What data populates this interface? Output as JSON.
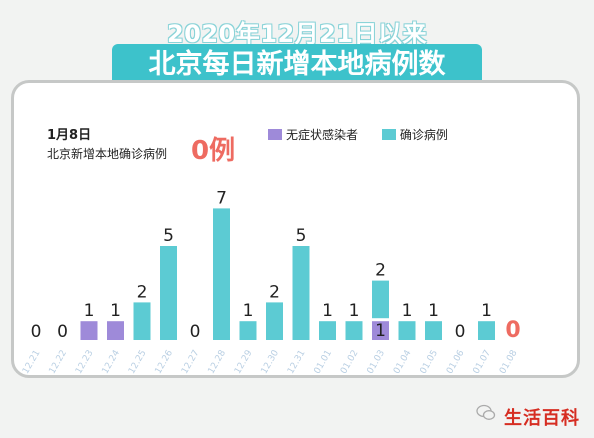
{
  "header": {
    "line1": "2020年12月21日以来",
    "line2": "北京每日新增本地病例数"
  },
  "info": {
    "date": "1月8日",
    "label": "北京新增本地确诊病例",
    "value": "0例"
  },
  "legend": {
    "asymptomatic": "无症状感染者",
    "confirmed": "确诊病例"
  },
  "colors": {
    "title_bg": "#3dc2cb",
    "confirmed": "#5ccbd3",
    "asymptomatic": "#9e8ad9",
    "highlight": "#ee6b61",
    "tick": "#b9cfe3",
    "brand": "#d62d22"
  },
  "footer": {
    "brand": "生活百科",
    "icon": "wechat-icon"
  },
  "chart_data": {
    "type": "bar",
    "categories": [
      "12.21",
      "12.22",
      "12.23",
      "12.24",
      "12.25",
      "12.26",
      "12.27",
      "12.28",
      "12.29",
      "12.30",
      "12.31",
      "01.01",
      "01.02",
      "01.03",
      "01.04",
      "01.05",
      "01.06",
      "01.07",
      "01.08"
    ],
    "series": [
      {
        "name": "无症状感染者",
        "values": [
          0,
          0,
          1,
          1,
          0,
          0,
          0,
          0,
          0,
          0,
          0,
          0,
          0,
          1,
          0,
          0,
          0,
          0,
          0
        ]
      },
      {
        "name": "确诊病例",
        "values": [
          0,
          0,
          0,
          0,
          2,
          5,
          0,
          7,
          1,
          2,
          5,
          1,
          1,
          2,
          1,
          1,
          0,
          1,
          0
        ]
      }
    ],
    "stacked": true,
    "ylim": [
      0,
      7
    ],
    "grid": false
  }
}
